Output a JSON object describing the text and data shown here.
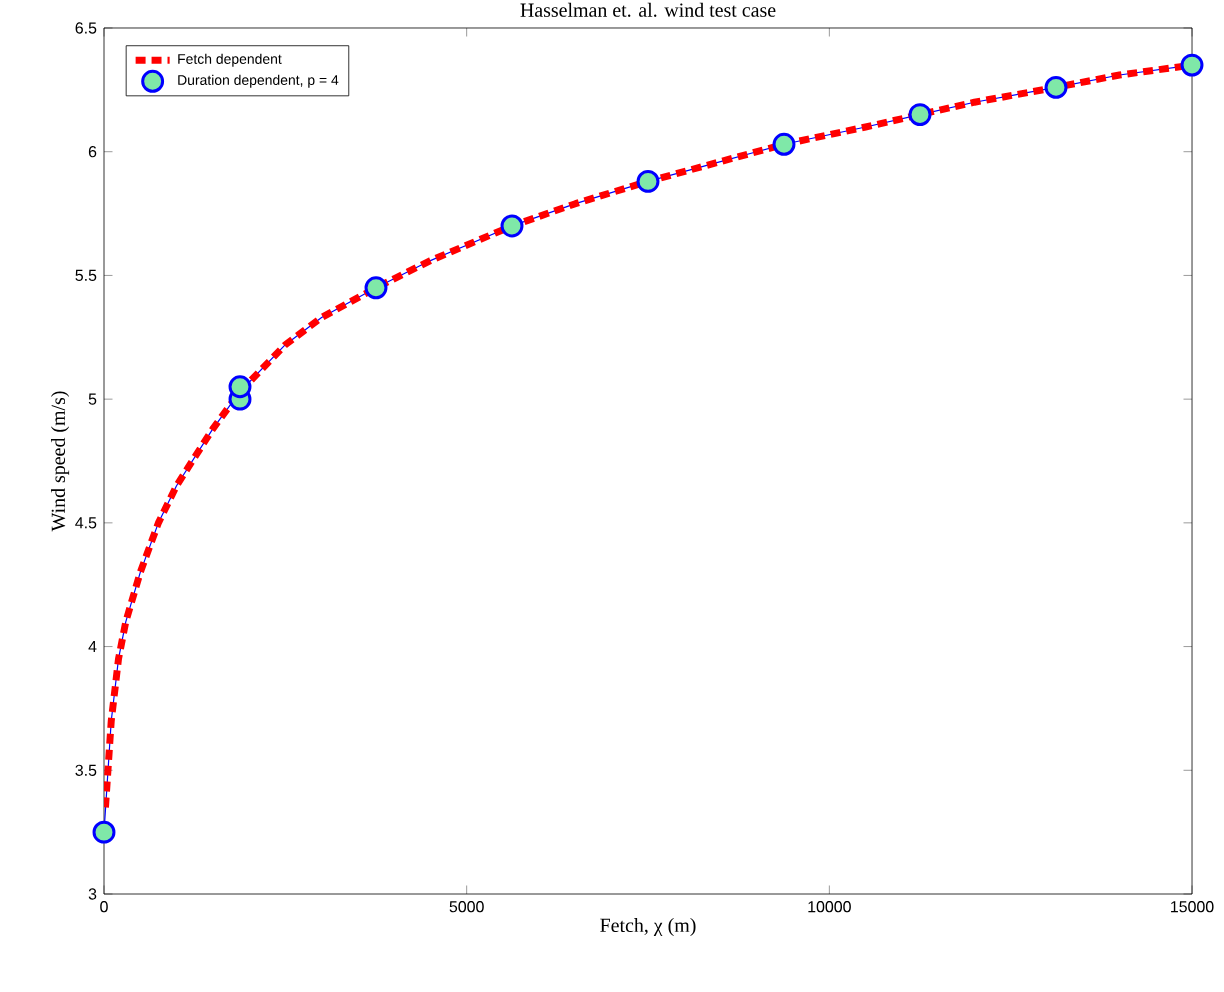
{
  "chart_data": {
    "type": "line",
    "title": "Hasselman et. al. wind test case",
    "xlabel": "Fetch, χ (m)",
    "ylabel": "Wind speed (m/s)",
    "xlim": [
      0,
      15000
    ],
    "ylim": [
      3,
      6.5
    ],
    "xticks": [
      0,
      5000,
      10000,
      15000
    ],
    "yticks": [
      3,
      3.5,
      4,
      4.5,
      5,
      5.5,
      6,
      6.5
    ],
    "grid": false,
    "legend": "top left",
    "series": [
      {
        "color": "#0000ff",
        "line_style": "solid",
        "marker": "none",
        "x": [
          0,
          100,
          200,
          300,
          500,
          750,
          1000,
          1500,
          1875,
          2500,
          3000,
          3750,
          4500,
          5625,
          6500,
          7500,
          8500,
          9375,
          10500,
          11250,
          12000,
          13125,
          14000,
          15000
        ],
        "values": [
          3.25,
          3.7,
          3.95,
          4.1,
          4.3,
          4.5,
          4.65,
          4.88,
          5.03,
          5.22,
          5.33,
          5.45,
          5.56,
          5.7,
          5.79,
          5.88,
          5.96,
          6.03,
          6.1,
          6.15,
          6.2,
          6.26,
          6.31,
          6.35
        ]
      },
      {
        "name": "Fetch dependent",
        "color": "#ff0000",
        "line_style": "dashed",
        "marker": "none",
        "x": [
          20,
          100,
          200,
          300,
          500,
          750,
          1000,
          1500,
          1875,
          2500,
          3000,
          3750,
          4500,
          5625,
          6500,
          7500,
          8500,
          9375,
          10500,
          11250,
          12000,
          13125,
          14000,
          15000
        ],
        "values": [
          3.35,
          3.7,
          3.95,
          4.1,
          4.3,
          4.5,
          4.65,
          4.88,
          5.03,
          5.22,
          5.33,
          5.45,
          5.56,
          5.7,
          5.79,
          5.88,
          5.96,
          6.03,
          6.1,
          6.15,
          6.2,
          6.26,
          6.31,
          6.35
        ]
      },
      {
        "type": "scatter",
        "name": "Duration dependent, p = 4",
        "color": "#7fe8a8",
        "marker": "circle",
        "x": [
          0,
          1875,
          1875,
          3750,
          5625,
          7500,
          9375,
          11250,
          13125,
          15000
        ],
        "values": [
          3.25,
          5.0,
          5.05,
          5.45,
          5.7,
          5.88,
          6.03,
          6.15,
          6.26,
          6.35
        ]
      }
    ]
  }
}
